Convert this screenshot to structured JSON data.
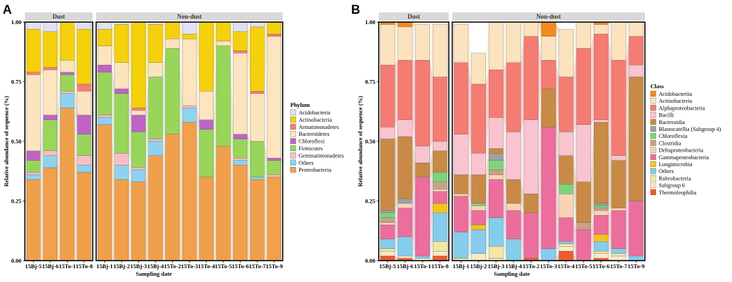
{
  "chart_data": [
    {
      "type": "bar",
      "panel_label": "A",
      "stacked": true,
      "title": "",
      "xlabel": "Sampling date",
      "ylabel": "Relative abundance of sequence (%)",
      "ylim": [
        0,
        1
      ],
      "yticks": [
        "0.00",
        "0.25",
        "0.50",
        "0.75",
        "1.00"
      ],
      "facets": [
        {
          "name": "Dust",
          "categories": [
            "15Bj-5",
            "15Bj-6",
            "15To-1",
            "15To-8"
          ]
        },
        {
          "name": "Non-dust",
          "categories": [
            "15Bj-1",
            "15Bj-2",
            "15Bj-3",
            "15Bj-4",
            "15To-2",
            "15To-3",
            "15To-4",
            "15To-5",
            "15To-6",
            "15To-7",
            "15To-9"
          ]
        }
      ],
      "legend_title": "Phylum",
      "legend_position": "right",
      "series": [
        {
          "name": "Acidobacteria",
          "color": "#E1E1F3"
        },
        {
          "name": "Actinobacteria",
          "color": "#F5D00C"
        },
        {
          "name": "Armatimonadetes",
          "color": "#F37F72"
        },
        {
          "name": "Bacteroidetes",
          "color": "#FCE4BE"
        },
        {
          "name": "Chloroflexi",
          "color": "#C063C6"
        },
        {
          "name": "Firmicutes",
          "color": "#99D55A"
        },
        {
          "name": "Gemmatimonadetes",
          "color": "#F9BDC7"
        },
        {
          "name": "Others",
          "color": "#8DD3F0"
        },
        {
          "name": "Proteobacteria",
          "color": "#F0A04A"
        }
      ],
      "stack_order_bottom_to_top": [
        "Proteobacteria",
        "Others",
        "Gemmatimonadetes",
        "Firmicutes",
        "Chloroflexi",
        "Bacteroidetes",
        "Armatimonadetes",
        "Actinobacteria",
        "Acidobacteria"
      ],
      "values": [
        {
          "Proteobacteria": 0.34,
          "Others": 0.02,
          "Gemmatimonadetes": 0.01,
          "Firmicutes": 0.05,
          "Chloroflexi": 0.04,
          "Bacteroidetes": 0.32,
          "Armatimonadetes": 0.01,
          "Actinobacteria": 0.18,
          "Acidobacteria": 0.03
        },
        {
          "Proteobacteria": 0.39,
          "Others": 0.05,
          "Gemmatimonadetes": 0.02,
          "Firmicutes": 0.13,
          "Chloroflexi": 0.02,
          "Bacteroidetes": 0.19,
          "Armatimonadetes": 0.01,
          "Actinobacteria": 0.15,
          "Acidobacteria": 0.04
        },
        {
          "Proteobacteria": 0.64,
          "Others": 0.06,
          "Gemmatimonadetes": 0.01,
          "Firmicutes": 0.07,
          "Chloroflexi": 0.01,
          "Bacteroidetes": 0.05,
          "Armatimonadetes": 0.0,
          "Actinobacteria": 0.16,
          "Acidobacteria": 0.0
        },
        {
          "Proteobacteria": 0.37,
          "Others": 0.03,
          "Gemmatimonadetes": 0.04,
          "Firmicutes": 0.09,
          "Chloroflexi": 0.08,
          "Bacteroidetes": 0.1,
          "Armatimonadetes": 0.03,
          "Actinobacteria": 0.23,
          "Acidobacteria": 0.03
        },
        {
          "Proteobacteria": 0.57,
          "Others": 0.03,
          "Gemmatimonadetes": 0.01,
          "Firmicutes": 0.18,
          "Chloroflexi": 0.03,
          "Bacteroidetes": 0.08,
          "Armatimonadetes": 0.0,
          "Actinobacteria": 0.07,
          "Acidobacteria": 0.03
        },
        {
          "Proteobacteria": 0.34,
          "Others": 0.06,
          "Gemmatimonadetes": 0.05,
          "Firmicutes": 0.25,
          "Chloroflexi": 0.02,
          "Bacteroidetes": 0.11,
          "Armatimonadetes": 0.0,
          "Actinobacteria": 0.16,
          "Acidobacteria": 0.01
        },
        {
          "Proteobacteria": 0.33,
          "Others": 0.05,
          "Gemmatimonadetes": 0.01,
          "Firmicutes": 0.15,
          "Chloroflexi": 0.07,
          "Bacteroidetes": 0.02,
          "Armatimonadetes": 0.01,
          "Actinobacteria": 0.36,
          "Acidobacteria": 0.0
        },
        {
          "Proteobacteria": 0.44,
          "Others": 0.06,
          "Gemmatimonadetes": 0.01,
          "Firmicutes": 0.26,
          "Chloroflexi": 0.0,
          "Bacteroidetes": 0.06,
          "Armatimonadetes": 0.0,
          "Actinobacteria": 0.16,
          "Acidobacteria": 0.01
        },
        {
          "Proteobacteria": 0.53,
          "Others": 0.0,
          "Gemmatimonadetes": 0.0,
          "Firmicutes": 0.36,
          "Chloroflexi": 0.0,
          "Bacteroidetes": 0.04,
          "Armatimonadetes": 0.0,
          "Actinobacteria": 0.07,
          "Acidobacteria": 0.0
        },
        {
          "Proteobacteria": 0.58,
          "Others": 0.06,
          "Gemmatimonadetes": 0.01,
          "Firmicutes": 0.0,
          "Chloroflexi": 0.0,
          "Bacteroidetes": 0.28,
          "Armatimonadetes": 0.0,
          "Actinobacteria": 0.02,
          "Acidobacteria": 0.05
        },
        {
          "Proteobacteria": 0.35,
          "Others": 0.0,
          "Gemmatimonadetes": 0.0,
          "Firmicutes": 0.2,
          "Chloroflexi": 0.04,
          "Bacteroidetes": 0.12,
          "Armatimonadetes": 0.0,
          "Actinobacteria": 0.29,
          "Acidobacteria": 0.0
        },
        {
          "Proteobacteria": 0.48,
          "Others": 0.0,
          "Gemmatimonadetes": 0.0,
          "Firmicutes": 0.42,
          "Chloroflexi": 0.0,
          "Bacteroidetes": 0.02,
          "Armatimonadetes": 0.0,
          "Actinobacteria": 0.08,
          "Acidobacteria": 0.0
        },
        {
          "Proteobacteria": 0.4,
          "Others": 0.02,
          "Gemmatimonadetes": 0.01,
          "Firmicutes": 0.08,
          "Chloroflexi": 0.02,
          "Bacteroidetes": 0.34,
          "Armatimonadetes": 0.01,
          "Actinobacteria": 0.08,
          "Acidobacteria": 0.04
        },
        {
          "Proteobacteria": 0.34,
          "Others": 0.01,
          "Gemmatimonadetes": 0.0,
          "Firmicutes": 0.15,
          "Chloroflexi": 0.0,
          "Bacteroidetes": 0.2,
          "Armatimonadetes": 0.01,
          "Actinobacteria": 0.27,
          "Acidobacteria": 0.02
        },
        {
          "Proteobacteria": 0.35,
          "Others": 0.0,
          "Gemmatimonadetes": 0.01,
          "Firmicutes": 0.06,
          "Chloroflexi": 0.01,
          "Bacteroidetes": 0.51,
          "Armatimonadetes": 0.01,
          "Actinobacteria": 0.05,
          "Acidobacteria": 0.0
        }
      ]
    },
    {
      "type": "bar",
      "panel_label": "B",
      "stacked": true,
      "title": "",
      "xlabel": "Sampling date",
      "ylabel": "Relative abundance of sequence (%)",
      "ylim": [
        0,
        1
      ],
      "yticks": [
        "0.00",
        "0.25",
        "0.50",
        "0.75",
        "1.00"
      ],
      "facets": [
        {
          "name": "Dust",
          "categories": [
            "15Bj-5",
            "15Bj-6",
            "15To-1",
            "15To-8"
          ]
        },
        {
          "name": "Non-dust",
          "categories": [
            "15Bj-1",
            "15Bj-2",
            "15Bj-3",
            "15Bj-4",
            "15To-2",
            "15To-3",
            "15To-4",
            "15To-5",
            "15To-6",
            "15To-7",
            "15To-9"
          ]
        }
      ],
      "legend_title": "Class",
      "legend_position": "right",
      "series": [
        {
          "name": "Acidobacteriia",
          "color": "#F28A1E"
        },
        {
          "name": "Actinobacteria",
          "color": "#FCE3BF"
        },
        {
          "name": "Alphaproteobacteria",
          "color": "#F47C72"
        },
        {
          "name": "Bacilli",
          "color": "#F8C4D0"
        },
        {
          "name": "Bacteroidia",
          "color": "#C88A45"
        },
        {
          "name": "Blastocatellia (Subgroup 4)",
          "color": "#9AA49E"
        },
        {
          "name": "Chloroflexia",
          "color": "#7ED47A"
        },
        {
          "name": "Clostridia",
          "color": "#C9A183"
        },
        {
          "name": "Deltaproteobacteria",
          "color": "#FAD3B5"
        },
        {
          "name": "Gammaproteobacteria",
          "color": "#EB6E9D"
        },
        {
          "name": "Longimicrobia",
          "color": "#F4C51B"
        },
        {
          "name": "Others",
          "color": "#86CCEB"
        },
        {
          "name": "Rubrobacteria",
          "color": "#F2E8A2"
        },
        {
          "name": "Subgroup 6",
          "color": "#FBE9C2"
        },
        {
          "name": "Thermoleophilia",
          "color": "#F05A2E"
        }
      ],
      "stack_order_bottom_to_top": [
        "Thermoleophilia",
        "Subgroup 6",
        "Rubrobacteria",
        "Others",
        "Longimicrobia",
        "Gammaproteobacteria",
        "Deltaproteobacteria",
        "Clostridia",
        "Chloroflexia",
        "Blastocatellia (Subgroup 4)",
        "Bacteroidia",
        "Bacilli",
        "Alphaproteobacteria",
        "Actinobacteria",
        "Acidobacteriia"
      ],
      "values": [
        {
          "Thermoleophilia": 0.02,
          "Subgroup 6": 0.02,
          "Rubrobacteria": 0.01,
          "Others": 0.04,
          "Longimicrobia": 0.0,
          "Gammaproteobacteria": 0.06,
          "Deltaproteobacteria": 0.01,
          "Clostridia": 0.02,
          "Chloroflexia": 0.02,
          "Blastocatellia (Subgroup 4)": 0.01,
          "Bacteroidia": 0.3,
          "Bacilli": 0.05,
          "Alphaproteobacteria": 0.26,
          "Actinobacteria": 0.17,
          "Acidobacteriia": 0.01
        },
        {
          "Thermoleophilia": 0.01,
          "Subgroup 6": 0.01,
          "Rubrobacteria": 0.0,
          "Others": 0.08,
          "Longimicrobia": 0.0,
          "Gammaproteobacteria": 0.12,
          "Deltaproteobacteria": 0.02,
          "Clostridia": 0.0,
          "Chloroflexia": 0.0,
          "Blastocatellia (Subgroup 4)": 0.02,
          "Bacteroidia": 0.26,
          "Bacilli": 0.07,
          "Alphaproteobacteria": 0.25,
          "Actinobacteria": 0.14,
          "Acidobacteriia": 0.02
        },
        {
          "Thermoleophilia": 0.0,
          "Subgroup 6": 0.01,
          "Rubrobacteria": 0.0,
          "Others": 0.01,
          "Longimicrobia": 0.0,
          "Gammaproteobacteria": 0.33,
          "Deltaproteobacteria": 0.0,
          "Clostridia": 0.0,
          "Chloroflexia": 0.0,
          "Blastocatellia (Subgroup 4)": 0.0,
          "Bacteroidia": 0.06,
          "Bacilli": 0.07,
          "Alphaproteobacteria": 0.36,
          "Actinobacteria": 0.15,
          "Acidobacteriia": 0.0
        },
        {
          "Thermoleophilia": 0.02,
          "Subgroup 6": 0.02,
          "Rubrobacteria": 0.04,
          "Others": 0.12,
          "Longimicrobia": 0.04,
          "Gammaproteobacteria": 0.05,
          "Deltaproteobacteria": 0.01,
          "Clostridia": 0.03,
          "Chloroflexia": 0.04,
          "Blastocatellia (Subgroup 4)": 0.0,
          "Bacteroidia": 0.09,
          "Bacilli": 0.04,
          "Alphaproteobacteria": 0.27,
          "Actinobacteria": 0.22,
          "Acidobacteriia": 0.0
        },
        {
          "Thermoleophilia": 0.0,
          "Subgroup 6": 0.0,
          "Rubrobacteria": 0.01,
          "Others": 0.11,
          "Longimicrobia": 0.0,
          "Gammaproteobacteria": 0.15,
          "Deltaproteobacteria": 0.01,
          "Clostridia": 0.0,
          "Chloroflexia": 0.0,
          "Blastocatellia (Subgroup 4)": 0.0,
          "Bacteroidia": 0.08,
          "Bacilli": 0.17,
          "Alphaproteobacteria": 0.3,
          "Actinobacteria": 0.16,
          "Acidobacteriia": 0.0
        },
        {
          "Thermoleophilia": 0.0,
          "Subgroup 6": 0.03,
          "Rubrobacteria": 0.0,
          "Others": 0.1,
          "Longimicrobia": 0.02,
          "Gammaproteobacteria": 0.06,
          "Deltaproteobacteria": 0.02,
          "Clostridia": 0.0,
          "Chloroflexia": 0.01,
          "Blastocatellia (Subgroup 4)": 0.0,
          "Bacteroidia": 0.12,
          "Bacilli": 0.09,
          "Alphaproteobacteria": 0.29,
          "Actinobacteria": 0.13,
          "Acidobacteriia": 0.0
        },
        {
          "Thermoleophilia": 0.0,
          "Subgroup 6": 0.01,
          "Rubrobacteria": 0.05,
          "Others": 0.12,
          "Longimicrobia": 0.0,
          "Gammaproteobacteria": 0.16,
          "Deltaproteobacteria": 0.02,
          "Clostridia": 0.02,
          "Chloroflexia": 0.04,
          "Blastocatellia (Subgroup 4)": 0.03,
          "Bacteroidia": 0.02,
          "Bacilli": 0.13,
          "Alphaproteobacteria": 0.2,
          "Actinobacteria": 0.2,
          "Acidobacteriia": 0.0
        },
        {
          "Thermoleophilia": 0.0,
          "Subgroup 6": 0.0,
          "Rubrobacteria": 0.0,
          "Others": 0.09,
          "Longimicrobia": 0.0,
          "Gammaproteobacteria": 0.12,
          "Deltaproteobacteria": 0.03,
          "Clostridia": 0.0,
          "Chloroflexia": 0.0,
          "Blastocatellia (Subgroup 4)": 0.0,
          "Bacteroidia": 0.1,
          "Bacilli": 0.2,
          "Alphaproteobacteria": 0.29,
          "Actinobacteria": 0.17,
          "Acidobacteriia": 0.0
        },
        {
          "Thermoleophilia": 0.01,
          "Subgroup 6": 0.0,
          "Rubrobacteria": 0.0,
          "Others": 0.0,
          "Longimicrobia": 0.0,
          "Gammaproteobacteria": 0.19,
          "Deltaproteobacteria": 0.0,
          "Clostridia": 0.0,
          "Chloroflexia": 0.0,
          "Blastocatellia (Subgroup 4)": 0.0,
          "Bacteroidia": 0.08,
          "Bacilli": 0.31,
          "Alphaproteobacteria": 0.35,
          "Actinobacteria": 0.06,
          "Acidobacteriia": 0.0
        },
        {
          "Thermoleophilia": 0.0,
          "Subgroup 6": 0.0,
          "Rubrobacteria": 0.0,
          "Others": 0.05,
          "Longimicrobia": 0.0,
          "Gammaproteobacteria": 0.51,
          "Deltaproteobacteria": 0.0,
          "Clostridia": 0.0,
          "Chloroflexia": 0.0,
          "Blastocatellia (Subgroup 4)": 0.0,
          "Bacteroidia": 0.16,
          "Bacilli": 0.0,
          "Alphaproteobacteria": 0.12,
          "Actinobacteria": 0.1,
          "Acidobacteriia": 0.06
        },
        {
          "Thermoleophilia": 0.04,
          "Subgroup 6": 0.02,
          "Rubrobacteria": 0.01,
          "Others": 0.01,
          "Longimicrobia": 0.0,
          "Gammaproteobacteria": 0.1,
          "Deltaproteobacteria": 0.1,
          "Clostridia": 0.0,
          "Chloroflexia": 0.04,
          "Blastocatellia (Subgroup 4)": 0.0,
          "Bacteroidia": 0.12,
          "Bacilli": 0.1,
          "Alphaproteobacteria": 0.23,
          "Actinobacteria": 0.2,
          "Acidobacteriia": 0.0
        },
        {
          "Thermoleophilia": 0.0,
          "Subgroup 6": 0.0,
          "Rubrobacteria": 0.0,
          "Others": 0.0,
          "Longimicrobia": 0.0,
          "Gammaproteobacteria": 0.13,
          "Deltaproteobacteria": 0.0,
          "Clostridia": 0.03,
          "Chloroflexia": 0.0,
          "Blastocatellia (Subgroup 4)": 0.0,
          "Bacteroidia": 0.17,
          "Bacilli": 0.24,
          "Alphaproteobacteria": 0.32,
          "Actinobacteria": 0.11,
          "Acidobacteriia": 0.0
        },
        {
          "Thermoleophilia": 0.01,
          "Subgroup 6": 0.02,
          "Rubrobacteria": 0.01,
          "Others": 0.04,
          "Longimicrobia": 0.03,
          "Gammaproteobacteria": 0.08,
          "Deltaproteobacteria": 0.02,
          "Clostridia": 0.01,
          "Chloroflexia": 0.01,
          "Blastocatellia (Subgroup 4)": 0.01,
          "Bacteroidia": 0.34,
          "Bacilli": 0.01,
          "Alphaproteobacteria": 0.36,
          "Actinobacteria": 0.04,
          "Acidobacteriia": 0.01
        },
        {
          "Thermoleophilia": 0.0,
          "Subgroup 6": 0.02,
          "Rubrobacteria": 0.01,
          "Others": 0.02,
          "Longimicrobia": 0.0,
          "Gammaproteobacteria": 0.16,
          "Deltaproteobacteria": 0.01,
          "Clostridia": 0.0,
          "Chloroflexia": 0.0,
          "Blastocatellia (Subgroup 4)": 0.0,
          "Bacteroidia": 0.2,
          "Bacilli": 0.02,
          "Alphaproteobacteria": 0.4,
          "Actinobacteria": 0.16,
          "Acidobacteriia": 0.0
        },
        {
          "Thermoleophilia": 0.0,
          "Subgroup 6": 0.0,
          "Rubrobacteria": 0.0,
          "Others": 0.02,
          "Longimicrobia": 0.0,
          "Gammaproteobacteria": 0.23,
          "Deltaproteobacteria": 0.0,
          "Clostridia": 0.0,
          "Chloroflexia": 0.0,
          "Blastocatellia (Subgroup 4)": 0.0,
          "Bacteroidia": 0.52,
          "Bacilli": 0.05,
          "Alphaproteobacteria": 0.12,
          "Actinobacteria": 0.06,
          "Acidobacteriia": 0.0
        }
      ]
    }
  ]
}
